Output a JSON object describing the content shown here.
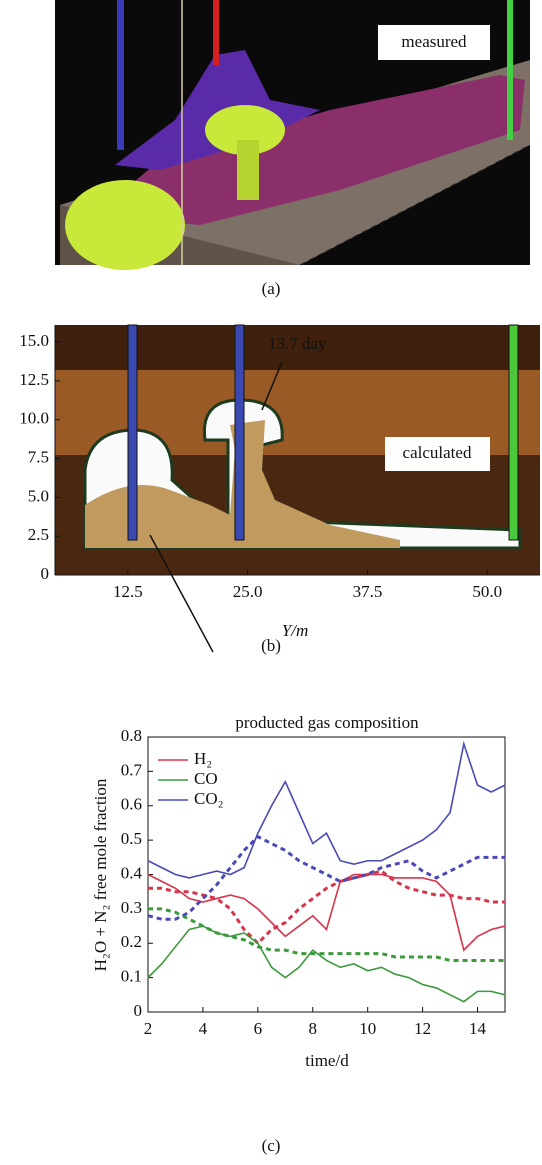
{
  "figure_a": {
    "label": "measured",
    "caption": "(a)"
  },
  "chart_data": [
    {
      "type": "image",
      "xlabel": "Y/m",
      "caption": "(b)",
      "annotations": [
        "13.7 day",
        "calculated"
      ],
      "xlim": [
        4.9,
        55.5
      ],
      "ylim": [
        0,
        16.1
      ],
      "xticks": [
        12.5,
        {
          "value": 25,
          "label": "25.0"
        },
        37.5,
        {
          "value": 50,
          "label": "50.0"
        }
      ],
      "yticks": [
        0,
        2.5,
        {
          "value": 5,
          "label": "5.0"
        },
        7.5,
        {
          "value": 10,
          "label": "10.0"
        },
        12.5,
        {
          "value": 15,
          "label": "15.0"
        }
      ]
    },
    {
      "type": "line",
      "title": "producted gas composition",
      "xlabel": "time/d",
      "ylabel": "H₂O + N₂ free mole fraction",
      "caption": "(c)",
      "xlim": [
        2,
        15
      ],
      "ylim": [
        0,
        0.8
      ],
      "xticks": [
        2,
        4,
        6,
        8,
        10,
        12,
        14
      ],
      "yticks": [
        0,
        0.1,
        0.2,
        0.3,
        0.4,
        0.5,
        0.6,
        0.7,
        0.8
      ],
      "x": [
        2,
        2.5,
        3,
        3.5,
        4,
        4.5,
        5,
        5.5,
        6,
        6.5,
        7,
        7.5,
        8,
        8.5,
        9,
        9.5,
        10,
        10.5,
        11,
        11.5,
        12,
        12.5,
        13,
        13.5,
        14,
        14.5,
        15
      ],
      "series": [
        {
          "name": "H₂",
          "color": "#d8344b",
          "values": [
            0.4,
            0.38,
            0.36,
            0.33,
            0.32,
            0.33,
            0.34,
            0.33,
            0.3,
            0.26,
            0.22,
            0.25,
            0.28,
            0.24,
            0.38,
            0.4,
            0.4,
            0.4,
            0.39,
            0.39,
            0.39,
            0.38,
            0.34,
            0.18,
            0.22,
            0.24,
            0.25
          ],
          "dashed_values": [
            0.36,
            0.36,
            0.35,
            0.35,
            0.34,
            0.33,
            0.3,
            0.24,
            0.2,
            0.24,
            0.26,
            0.3,
            0.33,
            0.36,
            0.38,
            0.39,
            0.4,
            0.41,
            0.38,
            0.36,
            0.35,
            0.34,
            0.34,
            0.33,
            0.33,
            0.32,
            0.32
          ]
        },
        {
          "name": "CO",
          "color": "#3c9a3c",
          "values": [
            0.1,
            0.14,
            0.19,
            0.24,
            0.25,
            0.23,
            0.22,
            0.23,
            0.2,
            0.13,
            0.1,
            0.13,
            0.18,
            0.15,
            0.13,
            0.14,
            0.12,
            0.13,
            0.11,
            0.1,
            0.08,
            0.07,
            0.05,
            0.03,
            0.06,
            0.06,
            0.05
          ],
          "dashed_values": [
            0.3,
            0.3,
            0.29,
            0.27,
            0.25,
            0.23,
            0.22,
            0.21,
            0.19,
            0.18,
            0.18,
            0.17,
            0.17,
            0.17,
            0.17,
            0.17,
            0.17,
            0.17,
            0.16,
            0.16,
            0.16,
            0.16,
            0.15,
            0.15,
            0.15,
            0.15,
            0.15
          ]
        },
        {
          "name": "CO₂",
          "color": "#4a4ab8",
          "values": [
            0.44,
            0.42,
            0.4,
            0.39,
            0.4,
            0.41,
            0.4,
            0.42,
            0.52,
            0.6,
            0.67,
            0.58,
            0.49,
            0.52,
            0.44,
            0.43,
            0.44,
            0.44,
            0.46,
            0.48,
            0.5,
            0.53,
            0.58,
            0.78,
            0.66,
            0.64,
            0.66
          ],
          "dashed_values": [
            0.28,
            0.27,
            0.27,
            0.29,
            0.33,
            0.37,
            0.42,
            0.47,
            0.51,
            0.49,
            0.47,
            0.44,
            0.42,
            0.4,
            0.38,
            0.39,
            0.4,
            0.42,
            0.43,
            0.44,
            0.41,
            0.39,
            0.41,
            0.43,
            0.45,
            0.45,
            0.45
          ]
        }
      ]
    }
  ]
}
